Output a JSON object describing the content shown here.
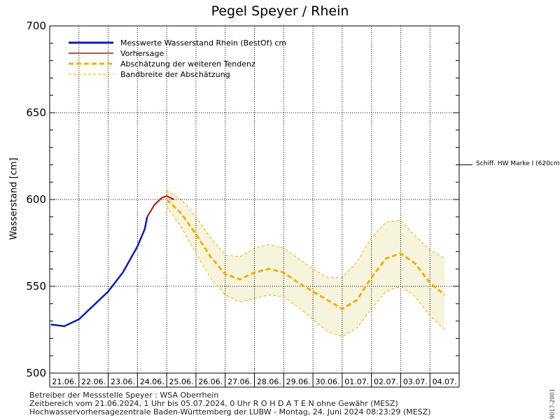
{
  "chart_data": {
    "type": "line",
    "title": "Pegel Speyer / Rhein",
    "ylabel": "Wasserstand [cm]",
    "ylim": [
      500,
      700
    ],
    "yticks": [
      "500",
      "550",
      "600",
      "650",
      "700"
    ],
    "xrange_days": "21.06.2024 – 05.07.2024",
    "day_labels": [
      "21.06.",
      "22.06.",
      "23.06.",
      "24.06.",
      "25.06.",
      "26.06.",
      "27.06.",
      "28.06.",
      "29.06.",
      "30.06.",
      "01.07.",
      "02.07.",
      "03.07.",
      "04.07."
    ],
    "grid": true,
    "legend": [
      {
        "label": "Messwerte Wasserstand Rhein (BestOf)  cm",
        "color": "#0a1fa8",
        "style": "solid-thick"
      },
      {
        "label": "Vorhersage",
        "color": "#b01010",
        "style": "solid"
      },
      {
        "label": "Abschätzung der weiteren Tendenz",
        "color": "#f0b010",
        "style": "dashed-thick"
      },
      {
        "label": "Bandbreite der Abschätzung",
        "color": "#f0b010",
        "style": "dashed-thin"
      }
    ],
    "legend_position": "top-left",
    "marker": {
      "label": "Schiff. HW Marke I (620cm)",
      "y": 620
    },
    "series": [
      {
        "name": "Messwerte Wasserstand Rhein (BestOf)  cm",
        "x": [
          "2024-06-21 01:00",
          "2024-06-21 12:00",
          "2024-06-22 00:00",
          "2024-06-22 12:00",
          "2024-06-23 00:00",
          "2024-06-23 12:00",
          "2024-06-24 00:00",
          "2024-06-24 06:00",
          "2024-06-24 08:00"
        ],
        "values": [
          528,
          527,
          531,
          539,
          547,
          558,
          573,
          583,
          590
        ]
      },
      {
        "name": "Vorhersage",
        "x": [
          "2024-06-24 08:00",
          "2024-06-24 14:00",
          "2024-06-24 20:00",
          "2024-06-25 00:00",
          "2024-06-25 06:00"
        ],
        "values": [
          590,
          597,
          601,
          602,
          600
        ]
      },
      {
        "name": "Abschätzung der weiteren Tendenz",
        "x": [
          "2024-06-25 00:00",
          "2024-06-25 12:00",
          "2024-06-26 00:00",
          "2024-06-26 12:00",
          "2024-06-27 00:00",
          "2024-06-27 12:00",
          "2024-06-28 00:00",
          "2024-06-28 12:00",
          "2024-06-29 00:00",
          "2024-06-29 12:00",
          "2024-06-30 00:00",
          "2024-06-30 12:00",
          "2024-07-01 00:00",
          "2024-07-01 12:00",
          "2024-07-02 00:00",
          "2024-07-02 12:00",
          "2024-07-03 00:00",
          "2024-07-03 12:00",
          "2024-07-04 00:00",
          "2024-07-04 12:00"
        ],
        "values": [
          600,
          592,
          580,
          567,
          557,
          554,
          558,
          560,
          558,
          552,
          547,
          542,
          537,
          542,
          555,
          566,
          569,
          563,
          552,
          545
        ]
      },
      {
        "name": "Bandbreite der Abschätzung (oben)",
        "x": [
          "2024-06-25 00:00",
          "2024-06-25 12:00",
          "2024-06-26 00:00",
          "2024-06-26 12:00",
          "2024-06-27 00:00",
          "2024-06-27 12:00",
          "2024-06-28 00:00",
          "2024-06-28 12:00",
          "2024-06-29 00:00",
          "2024-06-29 12:00",
          "2024-06-30 00:00",
          "2024-06-30 12:00",
          "2024-07-01 00:00",
          "2024-07-01 12:00",
          "2024-07-02 00:00",
          "2024-07-02 12:00",
          "2024-07-03 00:00",
          "2024-07-03 12:00",
          "2024-07-04 00:00",
          "2024-07-04 12:00"
        ],
        "values": [
          605,
          600,
          590,
          578,
          568,
          567,
          572,
          574,
          572,
          566,
          560,
          555,
          555,
          564,
          578,
          587,
          588,
          579,
          571,
          566
        ]
      },
      {
        "name": "Bandbreite der Abschätzung (unten)",
        "x": [
          "2024-06-25 00:00",
          "2024-06-25 12:00",
          "2024-06-26 00:00",
          "2024-06-26 12:00",
          "2024-06-27 00:00",
          "2024-06-27 12:00",
          "2024-06-28 00:00",
          "2024-06-28 12:00",
          "2024-06-29 00:00",
          "2024-06-29 12:00",
          "2024-06-30 00:00",
          "2024-06-30 12:00",
          "2024-07-01 00:00",
          "2024-07-01 12:00",
          "2024-07-02 00:00",
          "2024-07-02 12:00",
          "2024-07-03 00:00",
          "2024-07-03 12:00",
          "2024-07-04 00:00",
          "2024-07-04 12:00"
        ],
        "values": [
          596,
          584,
          569,
          555,
          545,
          541,
          543,
          545,
          544,
          538,
          531,
          524,
          521,
          526,
          537,
          547,
          550,
          544,
          533,
          525
        ]
      }
    ]
  },
  "colors": {
    "measured": "#0a1fa8",
    "forecast": "#b01010",
    "tendency": "#f0b010",
    "band_fill": "#f6f4dc",
    "grid": "#000000"
  },
  "footer": {
    "line1": "Betreiber der Messstelle Speyer : WSA Oberrhein",
    "line2": "Zeitbereich vom 21.06.2024, 1 Uhr bis 05.07.2024, 0 Uhr   R O H D A T E N ohne Gewähr (MESZ)",
    "line3": "Hochwasservorhersagezentrale Baden-Württemberg der LUBW - Montag, 24. Juni 2024 08:23:29 (MESZ)"
  },
  "side_id": "9017-2001"
}
